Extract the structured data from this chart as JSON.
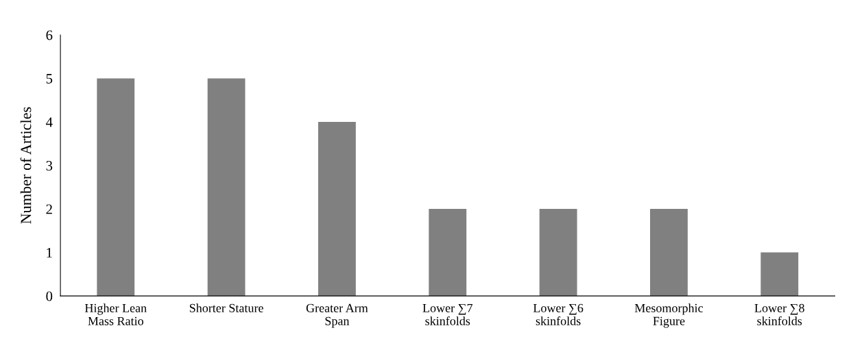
{
  "chart_data": {
    "type": "bar",
    "categories": [
      "Higher Lean\nMass Ratio",
      "Shorter Stature",
      "Greater Arm\nSpan",
      "Lower ∑7\nskinfolds",
      "Lower ∑6\nskinfolds",
      "Mesomorphic\nFigure",
      "Lower ∑8\nskinfolds"
    ],
    "values": [
      5,
      5,
      4,
      2,
      2,
      2,
      1
    ],
    "color": "#808080",
    "ylabel": "Number of Articles",
    "ylim": [
      0,
      6
    ],
    "yticks": [
      0,
      1,
      2,
      3,
      4,
      5,
      6
    ],
    "grid": false,
    "legend": false
  }
}
